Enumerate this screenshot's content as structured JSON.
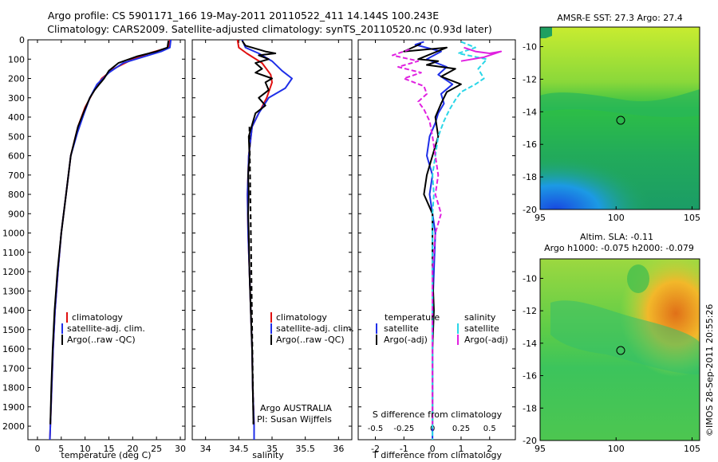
{
  "header": {
    "line1": "Argo profile: CS 5901171_166 19-May-2011 20110522_411 14.144S 100.243E",
    "line2": "Climatology: CARS2009. Satellite-adjusted climatology: synTS_20110520.nc (0.93d later)"
  },
  "credit": "©IMOS 28-Sep-2011 20:55:26",
  "colors": {
    "climatology": "#e01010",
    "satellite": "#1f2fe8",
    "argo": "#000000",
    "satellite_diff": "#2ad6e8",
    "argo_diff": "#e020e0"
  },
  "maps": {
    "sst": {
      "title": "AMSR-E SST: 27.3 Argo: 27.4"
    },
    "sla": {
      "title1": "Altim. SLA: -0.11",
      "title2": "Argo h1000: -0.075 h2000: -0.079"
    },
    "xticks": [
      "95",
      "100",
      "105"
    ],
    "yticks": [
      "-10",
      "-12",
      "-14",
      "-16",
      "-18",
      "-20"
    ]
  },
  "chart_data": [
    {
      "type": "line",
      "xlabel": "temperature (deg C)",
      "xlim": [
        -2,
        31
      ],
      "ylim": [
        2070,
        0
      ],
      "xticks": [
        "0",
        "5",
        "10",
        "15",
        "20",
        "25",
        "30"
      ],
      "yticks": [
        "0",
        "100",
        "200",
        "300",
        "400",
        "500",
        "600",
        "700",
        "800",
        "900",
        "1000",
        "1100",
        "1200",
        "1300",
        "1400",
        "1500",
        "1600",
        "1700",
        "1800",
        "1900",
        "2000"
      ],
      "legend": [
        "climatology",
        "satellite-adj. clim.",
        "Argo(..raw -QC)"
      ],
      "series": [
        {
          "name": "climatology",
          "points": [
            [
              27.8,
              0
            ],
            [
              27.5,
              40
            ],
            [
              24,
              65
            ],
            [
              20,
              100
            ],
            [
              16,
              150
            ],
            [
              13.5,
              200
            ],
            [
              11.5,
              280
            ],
            [
              10,
              350
            ],
            [
              8.5,
              450
            ],
            [
              7,
              600
            ],
            [
              6,
              800
            ],
            [
              5,
              1000
            ],
            [
              4.3,
              1200
            ],
            [
              3.7,
              1400
            ],
            [
              3.3,
              1600
            ],
            [
              3,
              1800
            ],
            [
              2.7,
              2000
            ],
            [
              2.6,
              2070
            ]
          ]
        },
        {
          "name": "satellite-adj. clim.",
          "points": [
            [
              28,
              0
            ],
            [
              27.8,
              40
            ],
            [
              26,
              60
            ],
            [
              22,
              90
            ],
            [
              18,
              120
            ],
            [
              15,
              170
            ],
            [
              12.5,
              230
            ],
            [
              11,
              300
            ],
            [
              9.8,
              380
            ],
            [
              8.4,
              480
            ],
            [
              7,
              600
            ],
            [
              6,
              800
            ],
            [
              5,
              1000
            ],
            [
              4.3,
              1200
            ],
            [
              3.7,
              1400
            ],
            [
              3.3,
              1600
            ],
            [
              3,
              1800
            ],
            [
              2.7,
              2000
            ],
            [
              2.6,
              2070
            ]
          ]
        },
        {
          "name": "Argo(..raw -QC)",
          "points": [
            [
              27.5,
              5
            ],
            [
              27.3,
              40
            ],
            [
              25,
              60
            ],
            [
              21,
              85
            ],
            [
              17,
              120
            ],
            [
              15,
              160
            ],
            [
              14,
              200
            ],
            [
              13,
              230
            ],
            [
              12,
              260
            ],
            [
              11,
              300
            ],
            [
              9.8,
              370
            ],
            [
              8.5,
              450
            ],
            [
              7,
              600
            ],
            [
              6,
              800
            ],
            [
              5,
              1000
            ],
            [
              4.2,
              1200
            ],
            [
              3.6,
              1400
            ],
            [
              3.2,
              1600
            ],
            [
              2.9,
              1800
            ],
            [
              2.7,
              1990
            ]
          ]
        }
      ]
    },
    {
      "type": "line",
      "xlabel": "salinity",
      "xlim": [
        33.8,
        36.2
      ],
      "ylim": [
        2070,
        0
      ],
      "xticks": [
        "34",
        "34.5",
        "35",
        "35.5",
        "36"
      ],
      "legend": [
        "climatology",
        "satellite-adj. clim.",
        "Argo(..raw -QC)"
      ],
      "annotation": [
        "Argo AUSTRALIA",
        "PI: Susan Wijffels"
      ],
      "series": [
        {
          "name": "climatology",
          "points": [
            [
              34.48,
              0
            ],
            [
              34.5,
              40
            ],
            [
              34.62,
              70
            ],
            [
              34.85,
              120
            ],
            [
              34.98,
              180
            ],
            [
              35,
              220
            ],
            [
              34.92,
              300
            ],
            [
              34.8,
              380
            ],
            [
              34.7,
              450
            ],
            [
              34.65,
              600
            ],
            [
              34.63,
              800
            ],
            [
              34.64,
              1000
            ],
            [
              34.66,
              1200
            ],
            [
              34.68,
              1400
            ],
            [
              34.7,
              1600
            ],
            [
              34.71,
              1800
            ],
            [
              34.73,
              2000
            ],
            [
              34.73,
              2070
            ]
          ]
        },
        {
          "name": "satellite-adj. clim.",
          "points": [
            [
              34.55,
              0
            ],
            [
              34.6,
              40
            ],
            [
              34.8,
              70
            ],
            [
              35,
              110
            ],
            [
              35.15,
              160
            ],
            [
              35.3,
              200
            ],
            [
              35.2,
              250
            ],
            [
              34.95,
              300
            ],
            [
              34.8,
              380
            ],
            [
              34.7,
              450
            ],
            [
              34.65,
              600
            ],
            [
              34.63,
              800
            ],
            [
              34.64,
              1000
            ],
            [
              34.66,
              1200
            ],
            [
              34.68,
              1400
            ],
            [
              34.7,
              1600
            ],
            [
              34.71,
              1800
            ],
            [
              34.73,
              2000
            ],
            [
              34.73,
              2070
            ]
          ]
        },
        {
          "name": "Argo(..raw -QC)",
          "points": [
            [
              34.55,
              5
            ],
            [
              34.6,
              30
            ],
            [
              34.9,
              60
            ],
            [
              35.05,
              70
            ],
            [
              34.8,
              80
            ],
            [
              34.95,
              100
            ],
            [
              34.75,
              120
            ],
            [
              34.85,
              150
            ],
            [
              34.75,
              170
            ],
            [
              35,
              200
            ],
            [
              34.9,
              220
            ],
            [
              34.95,
              260
            ],
            [
              34.8,
              300
            ],
            [
              34.9,
              340
            ],
            [
              34.75,
              380
            ],
            [
              34.7,
              440
            ],
            [
              34.65,
              500
            ],
            [
              34.66,
              600
            ],
            [
              34.64,
              700
            ],
            [
              34.65,
              800
            ],
            [
              34.64,
              900
            ],
            [
              34.65,
              1000
            ],
            [
              34.66,
              1200
            ],
            [
              34.68,
              1400
            ],
            [
              34.7,
              1600
            ],
            [
              34.71,
              1800
            ],
            [
              34.72,
              1990
            ]
          ]
        }
      ]
    },
    {
      "type": "line",
      "xlabel": "T difference from climatology",
      "xlabel_top": "S difference from climatology",
      "xlim": [
        -2.6,
        2.9
      ],
      "ylim": [
        2070,
        0
      ],
      "xticks": [
        "-2",
        "-1",
        "0",
        "1",
        "2"
      ],
      "xticks_top": [
        "-0.5",
        "-0.25",
        "0",
        "0.25",
        "0.5"
      ],
      "legend_left_title": "temperature",
      "legend_right_title": "salinity",
      "legend": [
        "satellite",
        "Argo(-adj)",
        "satellite",
        "Argo(-adj)"
      ],
      "series": [
        {
          "name": "temperature satellite",
          "points": [
            [
              -0.3,
              10
            ],
            [
              -0.6,
              25
            ],
            [
              0.3,
              60
            ],
            [
              -0.2,
              100
            ],
            [
              0.5,
              140
            ],
            [
              0.2,
              180
            ],
            [
              0.7,
              230
            ],
            [
              0.3,
              280
            ],
            [
              0.4,
              330
            ],
            [
              0.2,
              380
            ],
            [
              0.1,
              430
            ],
            [
              -0.1,
              500
            ],
            [
              -0.2,
              600
            ],
            [
              0,
              700
            ],
            [
              -0.1,
              800
            ],
            [
              0,
              900
            ],
            [
              0.1,
              1000
            ],
            [
              0.05,
              1200
            ],
            [
              0,
              1400
            ],
            [
              0,
              1600
            ],
            [
              0,
              1800
            ],
            [
              0,
              2000
            ],
            [
              0,
              2070
            ]
          ]
        },
        {
          "name": "temperature Argo(-adj)",
          "points": [
            [
              -0.4,
              20
            ],
            [
              -1.0,
              60
            ],
            [
              0.5,
              40
            ],
            [
              -0.5,
              100
            ],
            [
              0.2,
              110
            ],
            [
              -0.2,
              130
            ],
            [
              0.8,
              150
            ],
            [
              0.3,
              190
            ],
            [
              1.0,
              230
            ],
            [
              0.5,
              270
            ],
            [
              0.3,
              330
            ],
            [
              0.1,
              400
            ],
            [
              0.2,
              500
            ],
            [
              0,
              600
            ],
            [
              -0.2,
              700
            ],
            [
              -0.3,
              800
            ],
            [
              0,
              900
            ],
            [
              0,
              1000
            ],
            [
              0,
              1200
            ],
            [
              0.05,
              1400
            ],
            [
              0,
              1600
            ],
            [
              0,
              1800
            ],
            [
              0,
              1990
            ]
          ]
        },
        {
          "name": "salinity satellite",
          "points": [
            [
              1.0,
              10
            ],
            [
              1.5,
              40
            ],
            [
              0.9,
              70
            ],
            [
              1.9,
              100
            ],
            [
              1.6,
              150
            ],
            [
              1.8,
              200
            ],
            [
              1.5,
              230
            ],
            [
              1.0,
              270
            ],
            [
              0.8,
              310
            ],
            [
              0.6,
              360
            ],
            [
              0.4,
              420
            ],
            [
              0.2,
              500
            ],
            [
              0.1,
              600
            ],
            [
              0,
              700
            ],
            [
              0.05,
              800
            ],
            [
              0,
              900
            ],
            [
              0,
              1000
            ],
            [
              0,
              1200
            ],
            [
              0,
              1400
            ],
            [
              0,
              1600
            ],
            [
              0,
              1800
            ],
            [
              0,
              2000
            ],
            [
              0,
              2070
            ]
          ]
        },
        {
          "name": "salinity Argo(-adj)",
          "points": [
            [
              -0.8,
              50
            ],
            [
              -1.4,
              80
            ],
            [
              -0.5,
              110
            ],
            [
              -1.2,
              140
            ],
            [
              -0.4,
              170
            ],
            [
              -1.0,
              200
            ],
            [
              -0.3,
              240
            ],
            [
              -0.2,
              280
            ],
            [
              -0.5,
              320
            ],
            [
              -0.3,
              360
            ],
            [
              -0.1,
              420
            ],
            [
              0,
              500
            ],
            [
              0.1,
              600
            ],
            [
              0.2,
              700
            ],
            [
              0.1,
              800
            ],
            [
              0.3,
              900
            ],
            [
              0.1,
              1000
            ],
            [
              0,
              1200
            ],
            [
              0,
              1400
            ],
            [
              0,
              1600
            ],
            [
              0,
              1800
            ],
            [
              0,
              1990
            ]
          ]
        },
        {
          "name": "salinity Argo(-adj) surface",
          "points": [
            [
              1.1,
              40
            ],
            [
              1.5,
              60
            ],
            [
              2.0,
              70
            ],
            [
              2.4,
              60
            ],
            [
              1.8,
              90
            ],
            [
              1.0,
              110
            ]
          ]
        }
      ]
    }
  ]
}
